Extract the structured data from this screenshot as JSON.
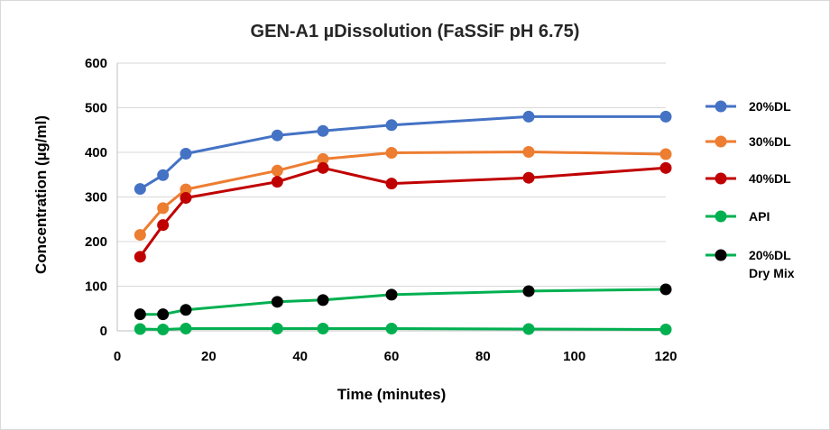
{
  "chart_data": {
    "type": "line",
    "title": "GEN-A1 µDissolution (FaSSiF pH 6.75)",
    "xlabel": "Time (minutes)",
    "ylabel": "Concentration (µg/ml)",
    "xlim": [
      0,
      120
    ],
    "ylim": [
      0,
      600
    ],
    "x_ticks": [
      0,
      20,
      40,
      60,
      80,
      100,
      120
    ],
    "y_ticks": [
      0,
      100,
      200,
      300,
      400,
      500,
      600
    ],
    "grid": "horizontal",
    "legend": "right",
    "series": [
      {
        "name": "20%DL",
        "name_lines": [
          "20%DL"
        ],
        "line_color": "#4472c4",
        "marker_color": "#4472c4",
        "x": [
          5,
          10,
          15,
          35,
          45,
          60,
          90,
          120
        ],
        "y": [
          318,
          349,
          397,
          438,
          448,
          461,
          480,
          480
        ]
      },
      {
        "name": "30%DL",
        "name_lines": [
          "30%DL"
        ],
        "line_color": "#ed7d31",
        "marker_color": "#ed7d31",
        "x": [
          5,
          10,
          15,
          35,
          45,
          60,
          90,
          120
        ],
        "y": [
          215,
          275,
          317,
          359,
          385,
          399,
          401,
          396
        ]
      },
      {
        "name": "40%DL",
        "name_lines": [
          "40%DL"
        ],
        "line_color": "#c00000",
        "marker_color": "#c00000",
        "x": [
          5,
          10,
          15,
          35,
          45,
          60,
          90,
          120
        ],
        "y": [
          166,
          237,
          298,
          334,
          365,
          330,
          343,
          365
        ]
      },
      {
        "name": "API",
        "name_lines": [
          "API"
        ],
        "line_color": "#00b050",
        "marker_color": "#00b050",
        "x": [
          5,
          10,
          15,
          35,
          45,
          60,
          90,
          120
        ],
        "y": [
          4,
          3,
          5,
          5,
          5,
          5,
          4,
          3
        ]
      },
      {
        "name": "20%DL Dry Mix",
        "name_lines": [
          "20%DL",
          "Dry Mix"
        ],
        "line_color": "#00b050",
        "marker_color": "#000000",
        "x": [
          5,
          10,
          15,
          35,
          45,
          60,
          90,
          120
        ],
        "y": [
          37,
          37,
          47,
          65,
          69,
          81,
          89,
          93
        ]
      }
    ]
  }
}
